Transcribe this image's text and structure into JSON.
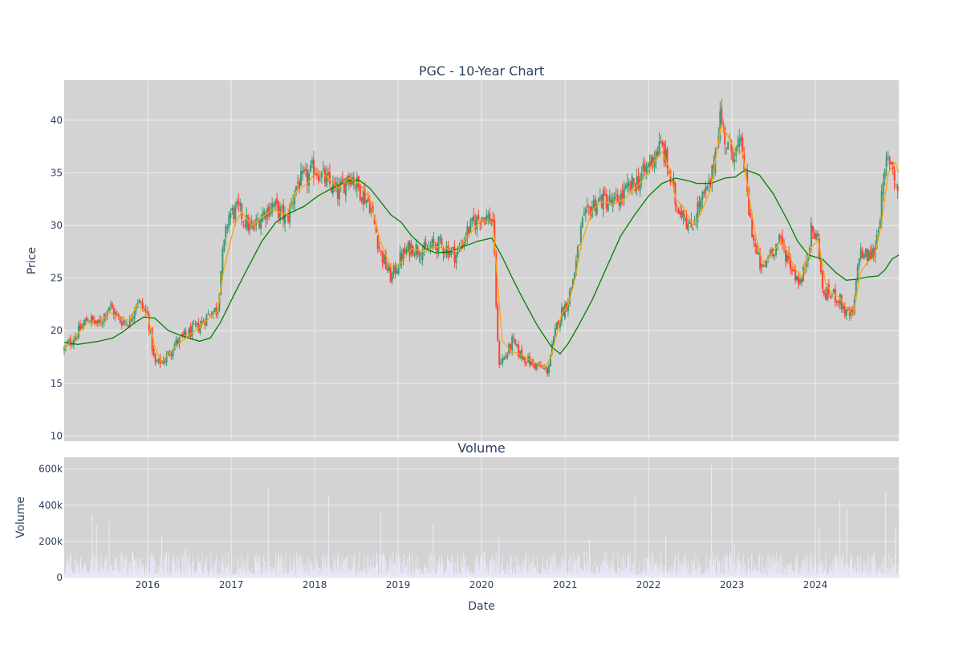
{
  "chart_data": [
    {
      "type": "candlestick",
      "title": "PGC - 10-Year Chart",
      "ylabel": "Price",
      "ylim": [
        9.5,
        43.8
      ],
      "yticks": [
        10,
        15,
        20,
        25,
        30,
        35,
        40
      ],
      "x_range": [
        "2015-01-01",
        "2024-12-31"
      ],
      "xticks": [
        "2016",
        "2017",
        "2018",
        "2019",
        "2020",
        "2021",
        "2022",
        "2023",
        "2024"
      ],
      "grid": true,
      "legend": "none",
      "colors": {
        "up": "#3d9970",
        "down": "#ff4136",
        "ma_short": "#ffa500",
        "ma_long": "#008000",
        "plot_bg": "#d3d3d3",
        "grid": "#eeeeee"
      },
      "close_anchors": [
        [
          "2015-01-01",
          18.2
        ],
        [
          "2015-03-01",
          19.8
        ],
        [
          "2015-04-15",
          21.2
        ],
        [
          "2015-06-01",
          20.5
        ],
        [
          "2015-07-15",
          22.4
        ],
        [
          "2015-09-01",
          21.0
        ],
        [
          "2015-10-15",
          20.8
        ],
        [
          "2015-11-15",
          23.0
        ],
        [
          "2016-01-01",
          21.5
        ],
        [
          "2016-02-01",
          16.8
        ],
        [
          "2016-03-15",
          17.2
        ],
        [
          "2016-05-01",
          18.8
        ],
        [
          "2016-07-01",
          19.8
        ],
        [
          "2016-08-15",
          20.5
        ],
        [
          "2016-10-01",
          21.8
        ],
        [
          "2016-11-01",
          22.0
        ],
        [
          "2016-11-20",
          26.5
        ],
        [
          "2016-12-20",
          31.0
        ],
        [
          "2017-02-01",
          31.5
        ],
        [
          "2017-04-01",
          29.5
        ],
        [
          "2017-05-15",
          31.0
        ],
        [
          "2017-07-01",
          32.0
        ],
        [
          "2017-09-01",
          30.5
        ],
        [
          "2017-10-15",
          34.0
        ],
        [
          "2017-12-01",
          34.5
        ],
        [
          "2018-01-01",
          35.5
        ],
        [
          "2018-03-01",
          34.0
        ],
        [
          "2018-04-15",
          33.0
        ],
        [
          "2018-06-01",
          35.0
        ],
        [
          "2018-07-15",
          33.5
        ],
        [
          "2018-09-01",
          32.0
        ],
        [
          "2018-10-15",
          27.5
        ],
        [
          "2018-12-01",
          25.0
        ],
        [
          "2019-01-15",
          27.0
        ],
        [
          "2019-03-01",
          28.0
        ],
        [
          "2019-05-01",
          27.5
        ],
        [
          "2019-06-15",
          28.3
        ],
        [
          "2019-08-01",
          27.8
        ],
        [
          "2019-09-15",
          27.2
        ],
        [
          "2019-11-01",
          29.5
        ],
        [
          "2020-01-01",
          31.0
        ],
        [
          "2020-02-20",
          30.5
        ],
        [
          "2020-03-15",
          17.0
        ],
        [
          "2020-04-15",
          17.5
        ],
        [
          "2020-05-15",
          19.0
        ],
        [
          "2020-06-15",
          17.8
        ],
        [
          "2020-08-01",
          17.0
        ],
        [
          "2020-09-15",
          16.5
        ],
        [
          "2020-10-15",
          16.2
        ],
        [
          "2020-12-01",
          21.0
        ],
        [
          "2021-01-15",
          23.0
        ],
        [
          "2021-02-15",
          26.0
        ],
        [
          "2021-03-15",
          30.0
        ],
        [
          "2021-05-01",
          32.0
        ],
        [
          "2021-06-15",
          32.5
        ],
        [
          "2021-08-01",
          32.0
        ],
        [
          "2021-09-15",
          33.0
        ],
        [
          "2021-11-01",
          34.0
        ],
        [
          "2021-12-15",
          35.0
        ],
        [
          "2022-02-01",
          37.0
        ],
        [
          "2022-03-01",
          37.5
        ],
        [
          "2022-04-01",
          35.0
        ],
        [
          "2022-05-01",
          32.0
        ],
        [
          "2022-06-01",
          31.5
        ],
        [
          "2022-07-01",
          29.5
        ],
        [
          "2022-08-01",
          31.5
        ],
        [
          "2022-10-01",
          34.0
        ],
        [
          "2022-11-10",
          40.5
        ],
        [
          "2022-12-10",
          37.5
        ],
        [
          "2023-01-15",
          37.0
        ],
        [
          "2023-02-15",
          37.5
        ],
        [
          "2023-03-15",
          31.5
        ],
        [
          "2023-04-15",
          27.5
        ],
        [
          "2023-05-15",
          25.5
        ],
        [
          "2023-06-15",
          27.5
        ],
        [
          "2023-08-01",
          28.5
        ],
        [
          "2023-09-01",
          27.0
        ],
        [
          "2023-10-01",
          25.5
        ],
        [
          "2023-11-01",
          24.5
        ],
        [
          "2023-12-15",
          29.5
        ],
        [
          "2024-01-15",
          28.5
        ],
        [
          "2024-02-01",
          23.5
        ],
        [
          "2024-03-15",
          23.5
        ],
        [
          "2024-04-15",
          23.0
        ],
        [
          "2024-05-15",
          21.5
        ],
        [
          "2024-06-15",
          21.5
        ],
        [
          "2024-07-10",
          27.5
        ],
        [
          "2024-08-15",
          27.0
        ],
        [
          "2024-09-15",
          27.5
        ],
        [
          "2024-10-15",
          32.0
        ],
        [
          "2024-11-10",
          36.5
        ],
        [
          "2024-12-01",
          36.0
        ],
        [
          "2024-12-31",
          32.5
        ]
      ],
      "ma_short_anchors": [
        [
          "2015-01-01",
          18.3
        ],
        [
          "2015-04-15",
          20.8
        ],
        [
          "2015-06-01",
          20.5
        ],
        [
          "2015-07-15",
          21.8
        ],
        [
          "2015-09-01",
          21.2
        ],
        [
          "2015-10-15",
          21.0
        ],
        [
          "2015-11-15",
          22.5
        ],
        [
          "2016-01-01",
          21.5
        ],
        [
          "2016-02-01",
          18.5
        ],
        [
          "2016-03-01",
          17.0
        ],
        [
          "2016-05-01",
          18.5
        ],
        [
          "2016-07-01",
          19.6
        ],
        [
          "2016-08-15",
          20.3
        ],
        [
          "2016-10-01",
          21.3
        ],
        [
          "2016-11-01",
          21.8
        ],
        [
          "2016-12-01",
          26.0
        ],
        [
          "2017-01-15",
          30.0
        ],
        [
          "2017-02-15",
          31.3
        ],
        [
          "2017-04-01",
          30.0
        ],
        [
          "2017-05-15",
          30.8
        ],
        [
          "2017-07-01",
          31.5
        ],
        [
          "2017-09-01",
          31.0
        ],
        [
          "2017-10-15",
          33.3
        ],
        [
          "2017-12-01",
          34.0
        ],
        [
          "2018-01-15",
          35.3
        ],
        [
          "2018-03-01",
          34.5
        ],
        [
          "2018-04-15",
          33.5
        ],
        [
          "2018-06-01",
          34.5
        ],
        [
          "2018-07-15",
          34.0
        ],
        [
          "2018-09-01",
          32.5
        ],
        [
          "2018-10-15",
          28.5
        ],
        [
          "2018-12-01",
          26.0
        ],
        [
          "2019-01-15",
          26.5
        ],
        [
          "2019-03-01",
          27.8
        ],
        [
          "2019-05-01",
          27.5
        ],
        [
          "2019-06-15",
          28.0
        ],
        [
          "2019-08-01",
          27.8
        ],
        [
          "2019-09-15",
          27.5
        ],
        [
          "2019-11-01",
          29.0
        ],
        [
          "2020-01-01",
          30.5
        ],
        [
          "2020-02-20",
          30.3
        ],
        [
          "2020-04-01",
          19.0
        ],
        [
          "2020-05-15",
          18.0
        ],
        [
          "2020-06-15",
          17.8
        ],
        [
          "2020-08-01",
          17.2
        ],
        [
          "2020-10-01",
          16.5
        ],
        [
          "2020-11-01",
          17.5
        ],
        [
          "2020-12-15",
          21.5
        ],
        [
          "2021-01-15",
          22.5
        ],
        [
          "2021-02-15",
          25.0
        ],
        [
          "2021-03-15",
          28.5
        ],
        [
          "2021-05-01",
          31.5
        ],
        [
          "2021-06-15",
          32.3
        ],
        [
          "2021-08-01",
          32.0
        ],
        [
          "2021-09-15",
          32.5
        ],
        [
          "2021-11-01",
          33.5
        ],
        [
          "2021-12-15",
          34.5
        ],
        [
          "2022-02-01",
          36.3
        ],
        [
          "2022-03-01",
          37.0
        ],
        [
          "2022-04-01",
          35.5
        ],
        [
          "2022-05-01",
          32.5
        ],
        [
          "2022-06-01",
          31.8
        ],
        [
          "2022-07-15",
          30.0
        ],
        [
          "2022-08-15",
          31.0
        ],
        [
          "2022-10-01",
          33.5
        ],
        [
          "2022-11-15",
          39.5
        ],
        [
          "2022-12-15",
          38.5
        ],
        [
          "2023-01-15",
          37.0
        ],
        [
          "2023-02-15",
          37.0
        ],
        [
          "2023-03-15",
          33.0
        ],
        [
          "2023-04-15",
          29.0
        ],
        [
          "2023-05-15",
          26.5
        ],
        [
          "2023-06-15",
          27.0
        ],
        [
          "2023-08-01",
          28.5
        ],
        [
          "2023-09-01",
          27.5
        ],
        [
          "2023-10-01",
          26.0
        ],
        [
          "2023-11-01",
          25.0
        ],
        [
          "2023-12-15",
          28.0
        ],
        [
          "2024-01-15",
          28.5
        ],
        [
          "2024-02-15",
          24.5
        ],
        [
          "2024-03-15",
          23.5
        ],
        [
          "2024-04-15",
          23.2
        ],
        [
          "2024-05-15",
          22.2
        ],
        [
          "2024-06-15",
          21.5
        ],
        [
          "2024-07-15",
          25.5
        ],
        [
          "2024-08-15",
          26.5
        ],
        [
          "2024-09-15",
          27.0
        ],
        [
          "2024-10-15",
          30.0
        ],
        [
          "2024-11-15",
          35.0
        ],
        [
          "2024-12-15",
          36.0
        ],
        [
          "2024-12-31",
          35.0
        ]
      ],
      "ma_long_anchors": [
        [
          "2015-01-01",
          18.9
        ],
        [
          "2015-03-01",
          18.7
        ],
        [
          "2015-06-01",
          19.0
        ],
        [
          "2015-08-01",
          19.3
        ],
        [
          "2015-09-15",
          19.9
        ],
        [
          "2015-11-01",
          20.7
        ],
        [
          "2015-12-15",
          21.3
        ],
        [
          "2016-02-01",
          21.2
        ],
        [
          "2016-04-01",
          20.0
        ],
        [
          "2016-06-01",
          19.5
        ],
        [
          "2016-07-15",
          19.2
        ],
        [
          "2016-08-15",
          19.0
        ],
        [
          "2016-10-01",
          19.3
        ],
        [
          "2016-11-15",
          20.8
        ],
        [
          "2017-01-15",
          23.5
        ],
        [
          "2017-03-15",
          26.0
        ],
        [
          "2017-05-15",
          28.5
        ],
        [
          "2017-07-15",
          30.3
        ],
        [
          "2017-09-15",
          31.2
        ],
        [
          "2017-11-15",
          31.8
        ],
        [
          "2018-01-15",
          32.8
        ],
        [
          "2018-03-15",
          33.5
        ],
        [
          "2018-05-01",
          34.0
        ],
        [
          "2018-06-01",
          34.3
        ],
        [
          "2018-07-15",
          34.3
        ],
        [
          "2018-09-01",
          33.5
        ],
        [
          "2018-10-15",
          32.3
        ],
        [
          "2018-12-01",
          31.0
        ],
        [
          "2019-01-15",
          30.3
        ],
        [
          "2019-03-01",
          29.0
        ],
        [
          "2019-05-01",
          27.8
        ],
        [
          "2019-06-15",
          27.4
        ],
        [
          "2019-08-15",
          27.5
        ],
        [
          "2019-10-15",
          28.0
        ],
        [
          "2019-12-15",
          28.5
        ],
        [
          "2020-02-15",
          28.8
        ],
        [
          "2020-04-01",
          27.0
        ],
        [
          "2020-05-15",
          25.0
        ],
        [
          "2020-07-01",
          23.0
        ],
        [
          "2020-09-01",
          20.5
        ],
        [
          "2020-11-01",
          18.5
        ],
        [
          "2020-12-10",
          17.8
        ],
        [
          "2021-01-15",
          18.8
        ],
        [
          "2021-03-01",
          20.5
        ],
        [
          "2021-05-01",
          23.0
        ],
        [
          "2021-07-01",
          26.0
        ],
        [
          "2021-09-01",
          29.0
        ],
        [
          "2021-11-01",
          31.0
        ],
        [
          "2022-01-01",
          32.8
        ],
        [
          "2022-03-01",
          34.0
        ],
        [
          "2022-05-01",
          34.5
        ],
        [
          "2022-07-01",
          34.2
        ],
        [
          "2022-08-01",
          34.0
        ],
        [
          "2022-10-01",
          34.0
        ],
        [
          "2022-12-01",
          34.5
        ],
        [
          "2023-01-15",
          34.6
        ],
        [
          "2023-03-01",
          35.3
        ],
        [
          "2023-05-01",
          34.8
        ],
        [
          "2023-07-01",
          33.0
        ],
        [
          "2023-09-01",
          30.5
        ],
        [
          "2023-10-15",
          28.5
        ],
        [
          "2023-12-01",
          27.2
        ],
        [
          "2024-02-01",
          26.8
        ],
        [
          "2024-04-01",
          25.5
        ],
        [
          "2024-05-15",
          24.8
        ],
        [
          "2024-07-01",
          24.9
        ],
        [
          "2024-08-15",
          25.1
        ],
        [
          "2024-10-01",
          25.2
        ],
        [
          "2024-11-01",
          25.8
        ],
        [
          "2024-12-01",
          26.8
        ],
        [
          "2024-12-31",
          27.2
        ]
      ]
    },
    {
      "type": "bar",
      "title": "Volume",
      "ylabel": "Volume",
      "xlabel": "Date",
      "ylim": [
        0,
        665000
      ],
      "yticks": [
        0,
        200000,
        400000,
        600000
      ],
      "ytick_labels": [
        "0",
        "200k",
        "400k",
        "600k"
      ],
      "xticks": [
        "2016",
        "2017",
        "2018",
        "2019",
        "2020",
        "2021",
        "2022",
        "2023",
        "2024"
      ],
      "grid": true,
      "colors": {
        "bar": "#e8e8f8",
        "plot_bg": "#d3d3d3"
      },
      "volume_spikes": [
        [
          "2015-05-01",
          350000
        ],
        [
          "2015-05-20",
          290000
        ],
        [
          "2015-07-15",
          310000
        ],
        [
          "2016-03-01",
          230000
        ],
        [
          "2016-06-15",
          160000
        ],
        [
          "2017-06-10",
          500000
        ],
        [
          "2018-03-01",
          455000
        ],
        [
          "2018-10-15",
          360000
        ],
        [
          "2019-06-01",
          300000
        ],
        [
          "2020-03-15",
          240000
        ],
        [
          "2021-04-15",
          210000
        ],
        [
          "2021-11-01",
          440000
        ],
        [
          "2022-03-15",
          230000
        ],
        [
          "2022-10-01",
          630000
        ],
        [
          "2023-01-10",
          180000
        ],
        [
          "2024-01-15",
          270000
        ],
        [
          "2024-04-15",
          430000
        ],
        [
          "2024-05-15",
          380000
        ],
        [
          "2024-11-01",
          470000
        ],
        [
          "2024-12-15",
          280000
        ]
      ]
    }
  ]
}
